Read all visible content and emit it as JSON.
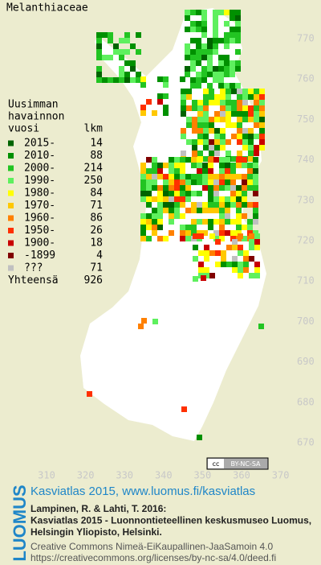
{
  "title": "Melanthiaceae",
  "legend": {
    "heading": [
      "Uusimman",
      "havainnon",
      "vuosi"
    ],
    "count_heading": "lkm",
    "entries": [
      {
        "label": "2015-",
        "count": 14,
        "color": "#006400"
      },
      {
        "label": "2010-",
        "count": 88,
        "color": "#009000"
      },
      {
        "label": "2000-",
        "count": 214,
        "color": "#22c422"
      },
      {
        "label": "1990-",
        "count": 250,
        "color": "#5ef05e"
      },
      {
        "label": "1980-",
        "count": 84,
        "color": "#ffff00"
      },
      {
        "label": "1970-",
        "count": 71,
        "color": "#ffc800"
      },
      {
        "label": "1960-",
        "count": 86,
        "color": "#ff8000"
      },
      {
        "label": "1950-",
        "count": 26,
        "color": "#ff3000"
      },
      {
        "label": "1900-",
        "count": 18,
        "color": "#c80000"
      },
      {
        "label": "-1899",
        "count": 4,
        "color": "#800000"
      },
      {
        "label": "???",
        "count": 71,
        "color": "#c0c0c0"
      }
    ],
    "total": {
      "label": "Yhteensä",
      "count": 926
    }
  },
  "y_grid_labels": [
    770,
    760,
    750,
    740,
    730,
    720,
    710,
    700,
    690,
    680,
    670
  ],
  "x_grid_labels": [
    310,
    320,
    330,
    340,
    350,
    360,
    370
  ],
  "license_badge": "BY-NC-SA",
  "footer": {
    "logo": "LUOMUS",
    "heading": "Kasviatlas 2015, www.luomus.fi/kasviatlas",
    "citation": [
      "Lampinen, R. & Lahti, T. 2016:",
      "Kasviatlas 2015 - Luonnontieteellinen keskusmuseo Luomus,",
      "Helsingin Yliopisto, Helsinki."
    ],
    "license": [
      "Creative Commons Nimeä-EiKaupallinen-JaaSamoin 4.0",
      "https://creativecommons.org/licenses/by-nc-sa/4.0/deed.fi"
    ]
  }
}
